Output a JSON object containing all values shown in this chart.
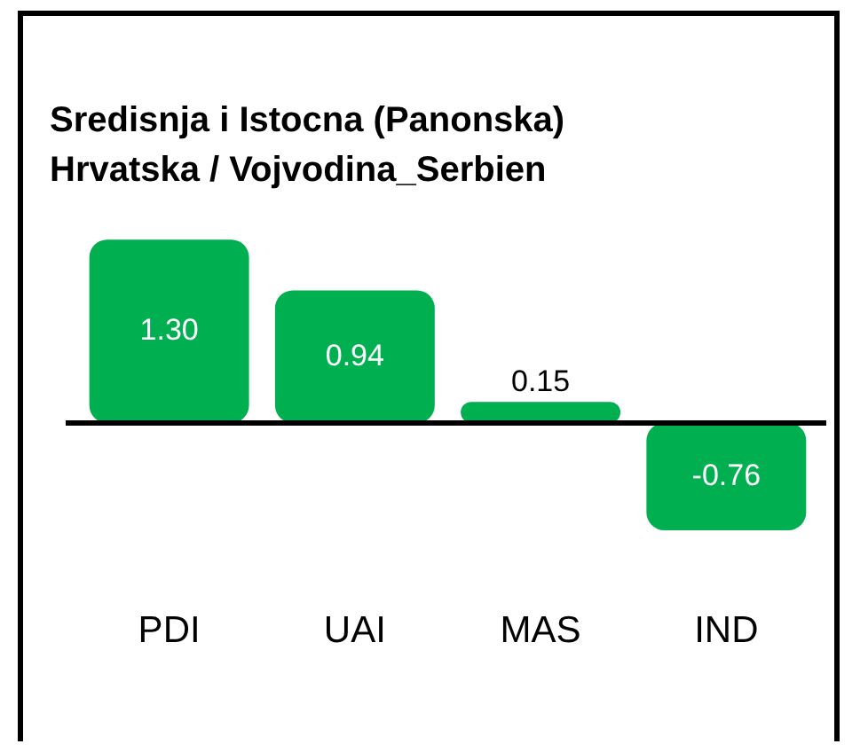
{
  "chart_data": {
    "type": "bar",
    "title": "Sredisnja i Istocna (Panonska)\nHrvatska / Vojvodina_Serbien",
    "categories": [
      "PDI",
      "UAI",
      "MAS",
      "IND"
    ],
    "values": [
      1.3,
      0.94,
      0.15,
      -0.76
    ],
    "value_labels": [
      "1.30",
      "0.94",
      "0.15",
      "-0.76"
    ],
    "color": "#00b050",
    "grid": false,
    "legend": false
  }
}
